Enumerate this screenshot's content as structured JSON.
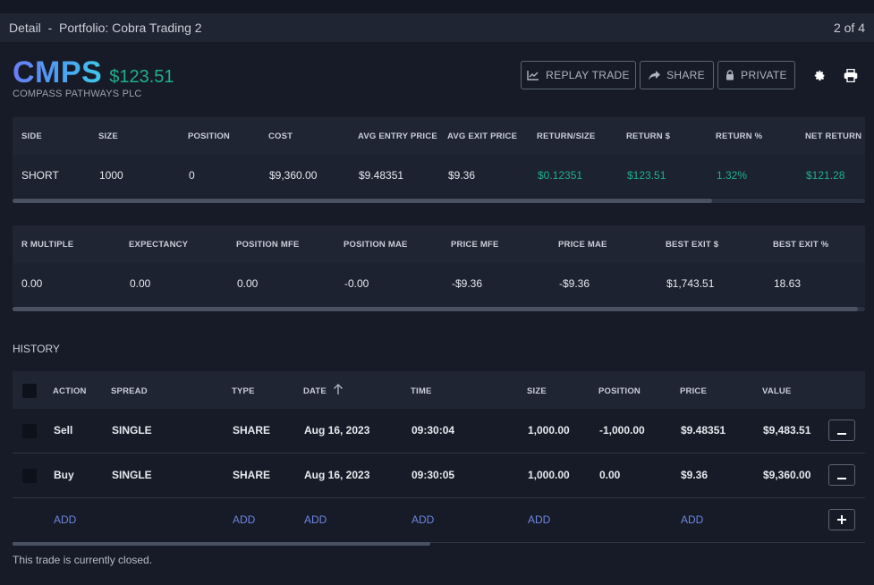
{
  "header": {
    "title": "Detail  -  Portfolio: Cobra Trading 2",
    "pager": "2 of 4"
  },
  "ticker": {
    "symbol": "CMPS",
    "return": "$123.51",
    "company": "COMPASS PATHWAYS PLC"
  },
  "actions": {
    "replay": "REPLAY TRADE",
    "share": "SHARE",
    "private": "PRIVATE"
  },
  "summary1": {
    "headers": [
      "SIDE",
      "SIZE",
      "POSITION",
      "COST",
      "AVG ENTRY PRICE",
      "AVG EXIT PRICE",
      "RETURN/SIZE",
      "RETURN $",
      "RETURN %",
      "NET RETURN"
    ],
    "values": [
      "SHORT",
      "1000",
      "0",
      "$9,360.00",
      "$9.48351",
      "$9.36",
      "$0.12351",
      "$123.51",
      "1.32%",
      "$121.28"
    ]
  },
  "summary2": {
    "headers": [
      "R MULTIPLE",
      "EXPECTANCY",
      "POSITION MFE",
      "POSITION MAE",
      "PRICE MFE",
      "PRICE MAE",
      "BEST EXIT $",
      "BEST EXIT %"
    ],
    "values": [
      "0.00",
      "0.00",
      "0.00",
      "-0.00",
      "-$9.36",
      "-$9.36",
      "$1,743.51",
      "18.63"
    ]
  },
  "history": {
    "label": "HISTORY",
    "headers": [
      "ACTION",
      "SPREAD",
      "TYPE",
      "DATE",
      "TIME",
      "SIZE",
      "POSITION",
      "PRICE",
      "VALUE"
    ],
    "rows": [
      [
        "Sell",
        "SINGLE",
        "SHARE",
        "Aug 16, 2023",
        "09:30:04",
        "1,000.00",
        "-1,000.00",
        "$9.48351",
        "$9,483.51"
      ],
      [
        "Buy",
        "SINGLE",
        "SHARE",
        "Aug 16, 2023",
        "09:30:05",
        "1,000.00",
        "0.00",
        "$9.36",
        "$9,360.00"
      ]
    ],
    "add_label": "ADD"
  },
  "footer": {
    "status": "This trade is currently closed."
  },
  "colors": {
    "accent_green": "#1fb08c",
    "link_blue": "#6d85e0",
    "background": "#161b27"
  },
  "icons": [
    "chart-line-icon",
    "share-icon",
    "lock-icon",
    "gear-icon",
    "print-icon",
    "sort-arrow-up-icon",
    "minus-icon",
    "plus-icon"
  ]
}
